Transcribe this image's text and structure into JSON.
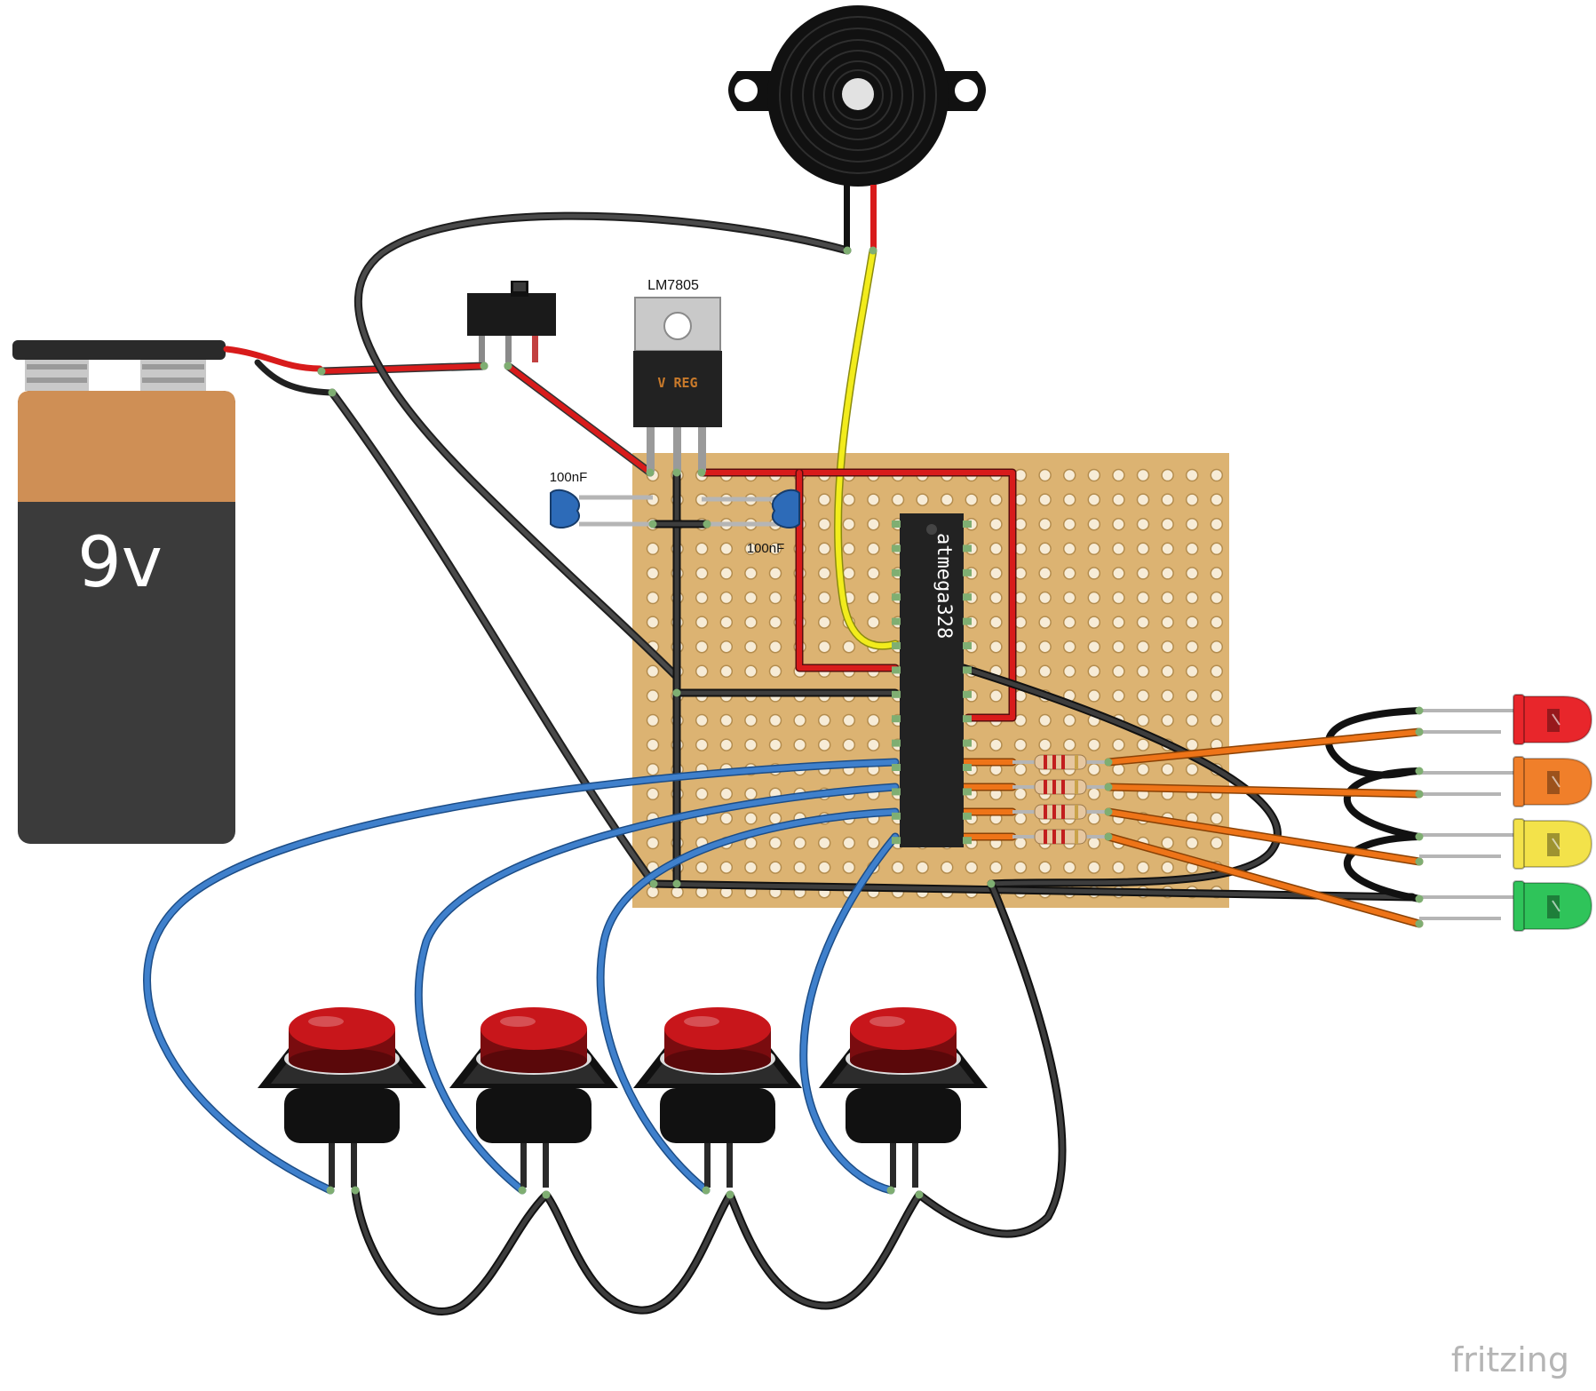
{
  "battery": {
    "label": "9v"
  },
  "regulator": {
    "part_label": "LM7805",
    "body_text": "V REG"
  },
  "capacitors": [
    {
      "label": "100nF"
    },
    {
      "label": "100nF"
    }
  ],
  "mcu": {
    "label": "atmega328"
  },
  "leds": [
    {
      "color": "#e8262b"
    },
    {
      "color": "#f07f2a"
    },
    {
      "color": "#f3e24a"
    },
    {
      "color": "#2fc45a"
    }
  ],
  "buttons": [
    {
      "color": "#c8161b"
    },
    {
      "color": "#c8161b"
    },
    {
      "color": "#c8161b"
    },
    {
      "color": "#c8161b"
    }
  ],
  "wire_colors": {
    "power": "#d81b1b",
    "ground": "#2e2e2e",
    "signal_buttons": "#3f80cc",
    "signal_leds": "#ee7418",
    "buzzer": "#f2ec1c"
  },
  "board": {
    "color": "#dcb372",
    "hole_color": "#f7ecd7"
  },
  "brand": {
    "text": "fritzing"
  }
}
